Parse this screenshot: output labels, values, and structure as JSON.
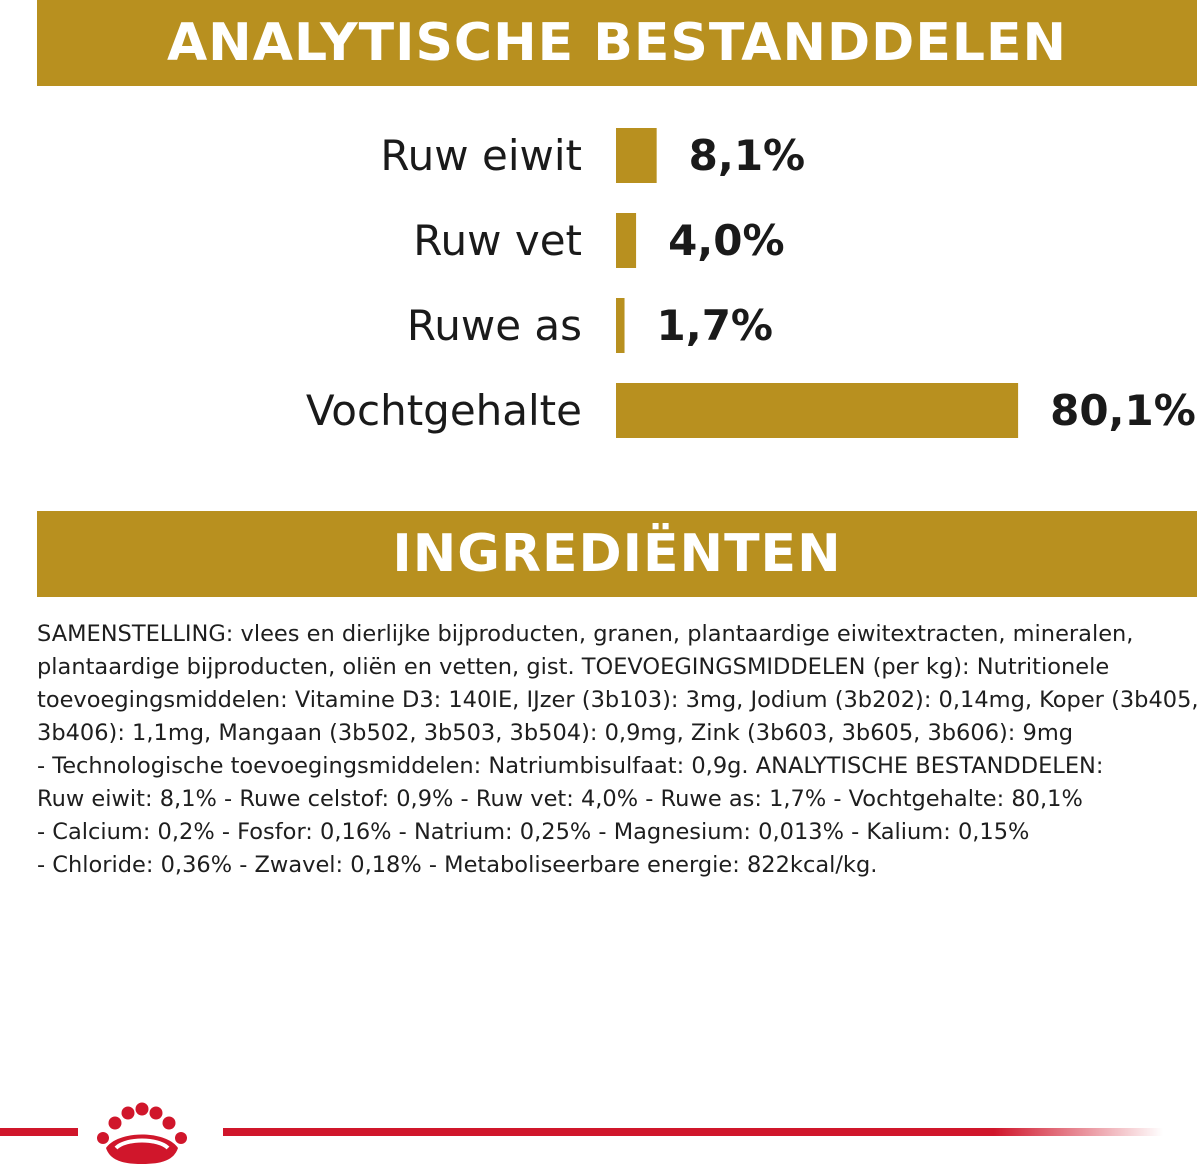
{
  "sections": {
    "analytical_title": "ANALYTISCHE BESTANDDELEN",
    "ingredients_title": "INGREDIËNTEN"
  },
  "chart_data": {
    "type": "bar",
    "orientation": "horizontal",
    "categories": [
      "Ruw eiwit",
      "Ruw vet",
      "Ruwe as",
      "Vochtgehalte"
    ],
    "values": [
      8.1,
      4.0,
      1.7,
      80.1
    ],
    "value_labels": [
      "8,1%",
      "4,0%",
      "1,7%",
      "80,1%"
    ],
    "unit": "%",
    "bar_color": "#b8901f",
    "title": "",
    "xlabel": "",
    "ylabel": "",
    "grid": false,
    "legend": "none"
  },
  "composition_lines": [
    "SAMENSTELLING: vlees en dierlijke bijproducten, granen, plantaardige eiwitextracten, mineralen,",
    "plantaardige bijproducten, oliën en vetten, gist. TOEVOEGINGSMIDDELEN (per kg): Nutritionele",
    "toevoegingsmiddelen: Vitamine D3: 140IE, IJzer (3b103): 3mg, Jodium (3b202): 0,14mg, Koper (3b405,",
    "3b406): 1,1mg, Mangaan (3b502, 3b503, 3b504): 0,9mg, Zink (3b603, 3b605, 3b606): 9mg",
    "- Technologische toevoegingsmiddelen: Natriumbisulfaat: 0,9g. ANALYTISCHE BESTANDDELEN:",
    "Ruw eiwit: 8,1% - Ruwe celstof: 0,9% - Ruw vet: 4,0% - Ruwe as: 1,7% - Vochtgehalte: 80,1%",
    "- Calcium: 0,2% - Fosfor: 0,16% - Natrium: 0,25% - Magnesium: 0,013% - Kalium: 0,15%",
    "- Chloride: 0,36% - Zwavel: 0,18% - Metaboliseerbare energie: 822kcal/kg."
  ],
  "brand": {
    "logo_icon": "crown-icon",
    "accent_color": "#b8901f",
    "footer_color": "#d0162b"
  }
}
